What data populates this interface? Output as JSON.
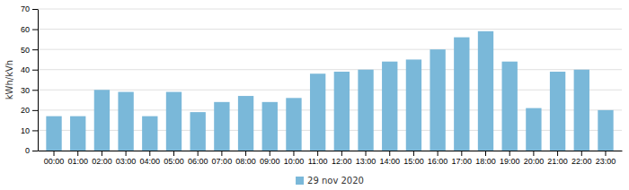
{
  "chart_data": {
    "type": "bar",
    "y_label": "kWh/kVh",
    "categories": [
      "00:00",
      "01:00",
      "02:00",
      "03:00",
      "04:00",
      "05:00",
      "06:00",
      "07:00",
      "08:00",
      "09:00",
      "10:00",
      "11:00",
      "12:00",
      "13:00",
      "14:00",
      "15:00",
      "16:00",
      "17:00",
      "18:00",
      "19:00",
      "20:00",
      "21:00",
      "22:00",
      "23:00"
    ],
    "series": [
      {
        "name": "29 nov 2020",
        "color": "#7ab8d9",
        "values": [
          17,
          17,
          30,
          29,
          17,
          29,
          19,
          24,
          27,
          24,
          26,
          38,
          39,
          40,
          44,
          45,
          50,
          56,
          59,
          44,
          21,
          39,
          40,
          20
        ]
      }
    ],
    "ylim": [
      0,
      70
    ],
    "yticks": [
      0,
      10,
      20,
      30,
      40,
      50,
      60,
      70
    ],
    "grid": true,
    "legend": "bottom"
  }
}
